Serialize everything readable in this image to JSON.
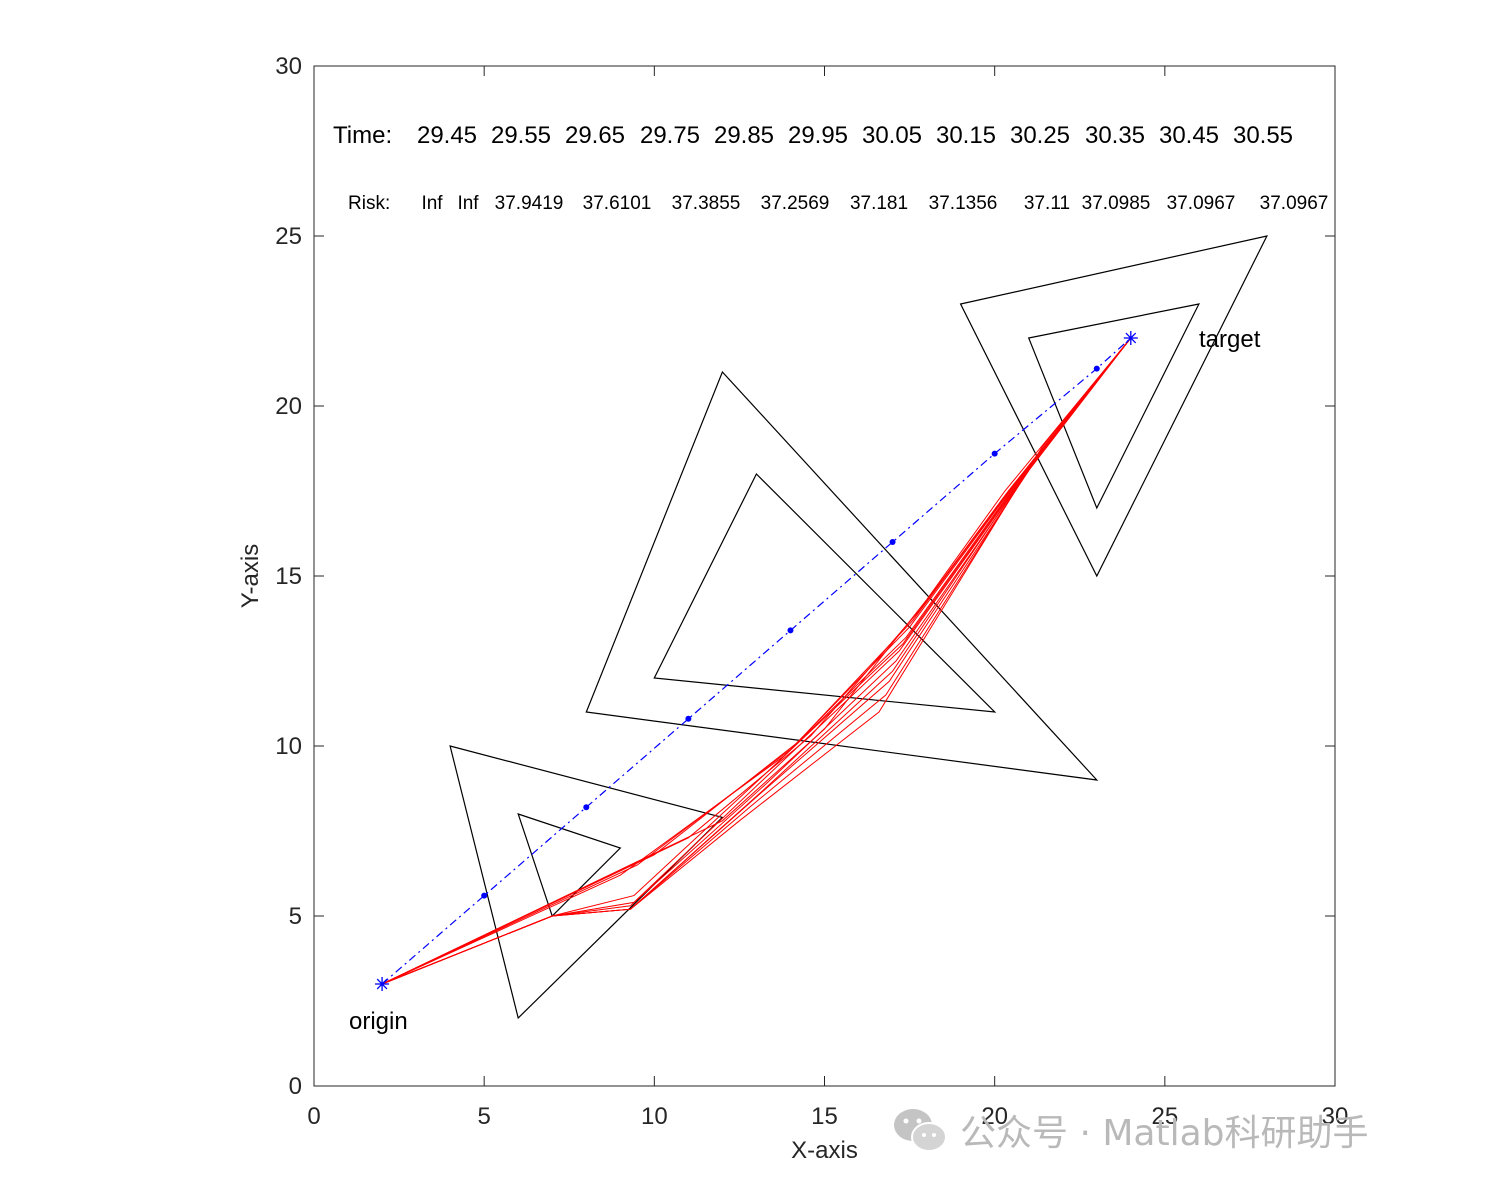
{
  "chart_data": {
    "type": "line",
    "xlabel": "X-axis",
    "ylabel": "Y-axis",
    "xlim": [
      0,
      30
    ],
    "ylim": [
      0,
      30
    ],
    "xticks": [
      0,
      5,
      10,
      15,
      20,
      25,
      30
    ],
    "yticks": [
      0,
      5,
      10,
      15,
      20,
      25,
      30
    ],
    "grid": false,
    "annotations": {
      "time_label": "Time:",
      "time_values": [
        "29.45",
        "29.55",
        "29.65",
        "29.75",
        "29.85",
        "29.95",
        "30.05",
        "30.15",
        "30.25",
        "30.35",
        "30.45",
        "30.55"
      ],
      "risk_label": "Risk:",
      "risk_values": [
        "Inf",
        "Inf",
        "37.9419",
        "37.6101",
        "37.3855",
        "37.2569",
        "37.181",
        "37.1356",
        "37.11",
        "37.0985",
        "37.0967",
        "37.0967"
      ]
    },
    "origin": {
      "label": "origin",
      "x": 2,
      "y": 3
    },
    "target": {
      "label": "target",
      "x": 24,
      "y": 22
    },
    "obstacles": [
      {
        "outer": [
          [
            4,
            10
          ],
          [
            12,
            7.9
          ],
          [
            6,
            2
          ]
        ],
        "inner": [
          [
            6,
            8
          ],
          [
            9,
            7
          ],
          [
            7,
            5
          ]
        ]
      },
      {
        "outer": [
          [
            12,
            21
          ],
          [
            23,
            9
          ],
          [
            8,
            11
          ]
        ],
        "inner": [
          [
            13,
            18
          ],
          [
            20,
            11
          ],
          [
            10,
            12
          ]
        ]
      },
      {
        "outer": [
          [
            19,
            23
          ],
          [
            28,
            25
          ],
          [
            23,
            15
          ]
        ],
        "inner": [
          [
            21,
            22
          ],
          [
            26,
            23
          ],
          [
            23,
            17
          ]
        ]
      }
    ],
    "straight_path": {
      "color": "#0000ff",
      "points": [
        [
          2,
          3
        ],
        [
          5,
          5.6
        ],
        [
          8,
          8.2
        ],
        [
          11,
          10.8
        ],
        [
          14,
          13.4
        ],
        [
          17,
          16
        ],
        [
          20,
          18.6
        ],
        [
          23,
          21.1
        ],
        [
          24,
          22
        ]
      ]
    },
    "optimized_paths": {
      "color": "#ff0000",
      "paths": [
        [
          [
            2,
            3
          ],
          [
            12,
            7.8
          ],
          [
            15,
            10.5
          ],
          [
            18,
            14.3
          ],
          [
            20.3,
            17.5
          ],
          [
            24,
            22
          ]
        ],
        [
          [
            2,
            3
          ],
          [
            11,
            7.3
          ],
          [
            14.6,
            10.3
          ],
          [
            17.8,
            14
          ],
          [
            20.4,
            17.5
          ],
          [
            24,
            22
          ]
        ],
        [
          [
            2,
            3
          ],
          [
            10,
            6.8
          ],
          [
            14.2,
            10.1
          ],
          [
            17.6,
            13.7
          ],
          [
            20.5,
            17.6
          ],
          [
            24,
            22
          ]
        ],
        [
          [
            2,
            3
          ],
          [
            9.5,
            6.5
          ],
          [
            14,
            9.9
          ],
          [
            17.5,
            13.5
          ],
          [
            20.6,
            17.7
          ],
          [
            24,
            22
          ]
        ],
        [
          [
            2,
            3
          ],
          [
            9,
            6.2
          ],
          [
            13.8,
            9.7
          ],
          [
            17.4,
            13.2
          ],
          [
            20.7,
            17.8
          ],
          [
            24,
            22
          ]
        ],
        [
          [
            2,
            3
          ],
          [
            7,
            5
          ],
          [
            9.4,
            5.6
          ],
          [
            13.6,
            9.5
          ],
          [
            17.3,
            13
          ],
          [
            20.8,
            17.9
          ],
          [
            24,
            22
          ]
        ],
        [
          [
            2,
            3
          ],
          [
            7,
            5
          ],
          [
            9.4,
            5.4
          ],
          [
            13.4,
            9.2
          ],
          [
            17.2,
            12.8
          ],
          [
            20.9,
            18
          ],
          [
            24,
            22
          ]
        ],
        [
          [
            2,
            3
          ],
          [
            7,
            5
          ],
          [
            9.3,
            5.3
          ],
          [
            13.3,
            8.9
          ],
          [
            17.1,
            12.5
          ],
          [
            21,
            18.1
          ],
          [
            24,
            22
          ]
        ],
        [
          [
            2,
            3
          ],
          [
            7,
            5
          ],
          [
            9.3,
            5.2
          ],
          [
            13.2,
            8.7
          ],
          [
            17,
            12.2
          ],
          [
            21.1,
            18.3
          ],
          [
            24,
            22
          ]
        ],
        [
          [
            2,
            3
          ],
          [
            7,
            5
          ],
          [
            9.3,
            5.2
          ],
          [
            13,
            8.5
          ],
          [
            16.9,
            11.9
          ],
          [
            21.2,
            18.4
          ],
          [
            24,
            22
          ]
        ],
        [
          [
            2,
            3
          ],
          [
            7,
            5
          ],
          [
            9.3,
            5.2
          ],
          [
            12.8,
            8.2
          ],
          [
            16.8,
            11.5
          ],
          [
            21.3,
            18.6
          ],
          [
            24,
            22
          ]
        ],
        [
          [
            2,
            3
          ],
          [
            7,
            5
          ],
          [
            9.3,
            5.2
          ],
          [
            12.5,
            7.8
          ],
          [
            16.6,
            11
          ],
          [
            21.4,
            18.8
          ],
          [
            24,
            22
          ]
        ]
      ]
    }
  },
  "watermark": {
    "icon": "wechat-icon",
    "text": "公众号 · Matlab科研助手"
  }
}
